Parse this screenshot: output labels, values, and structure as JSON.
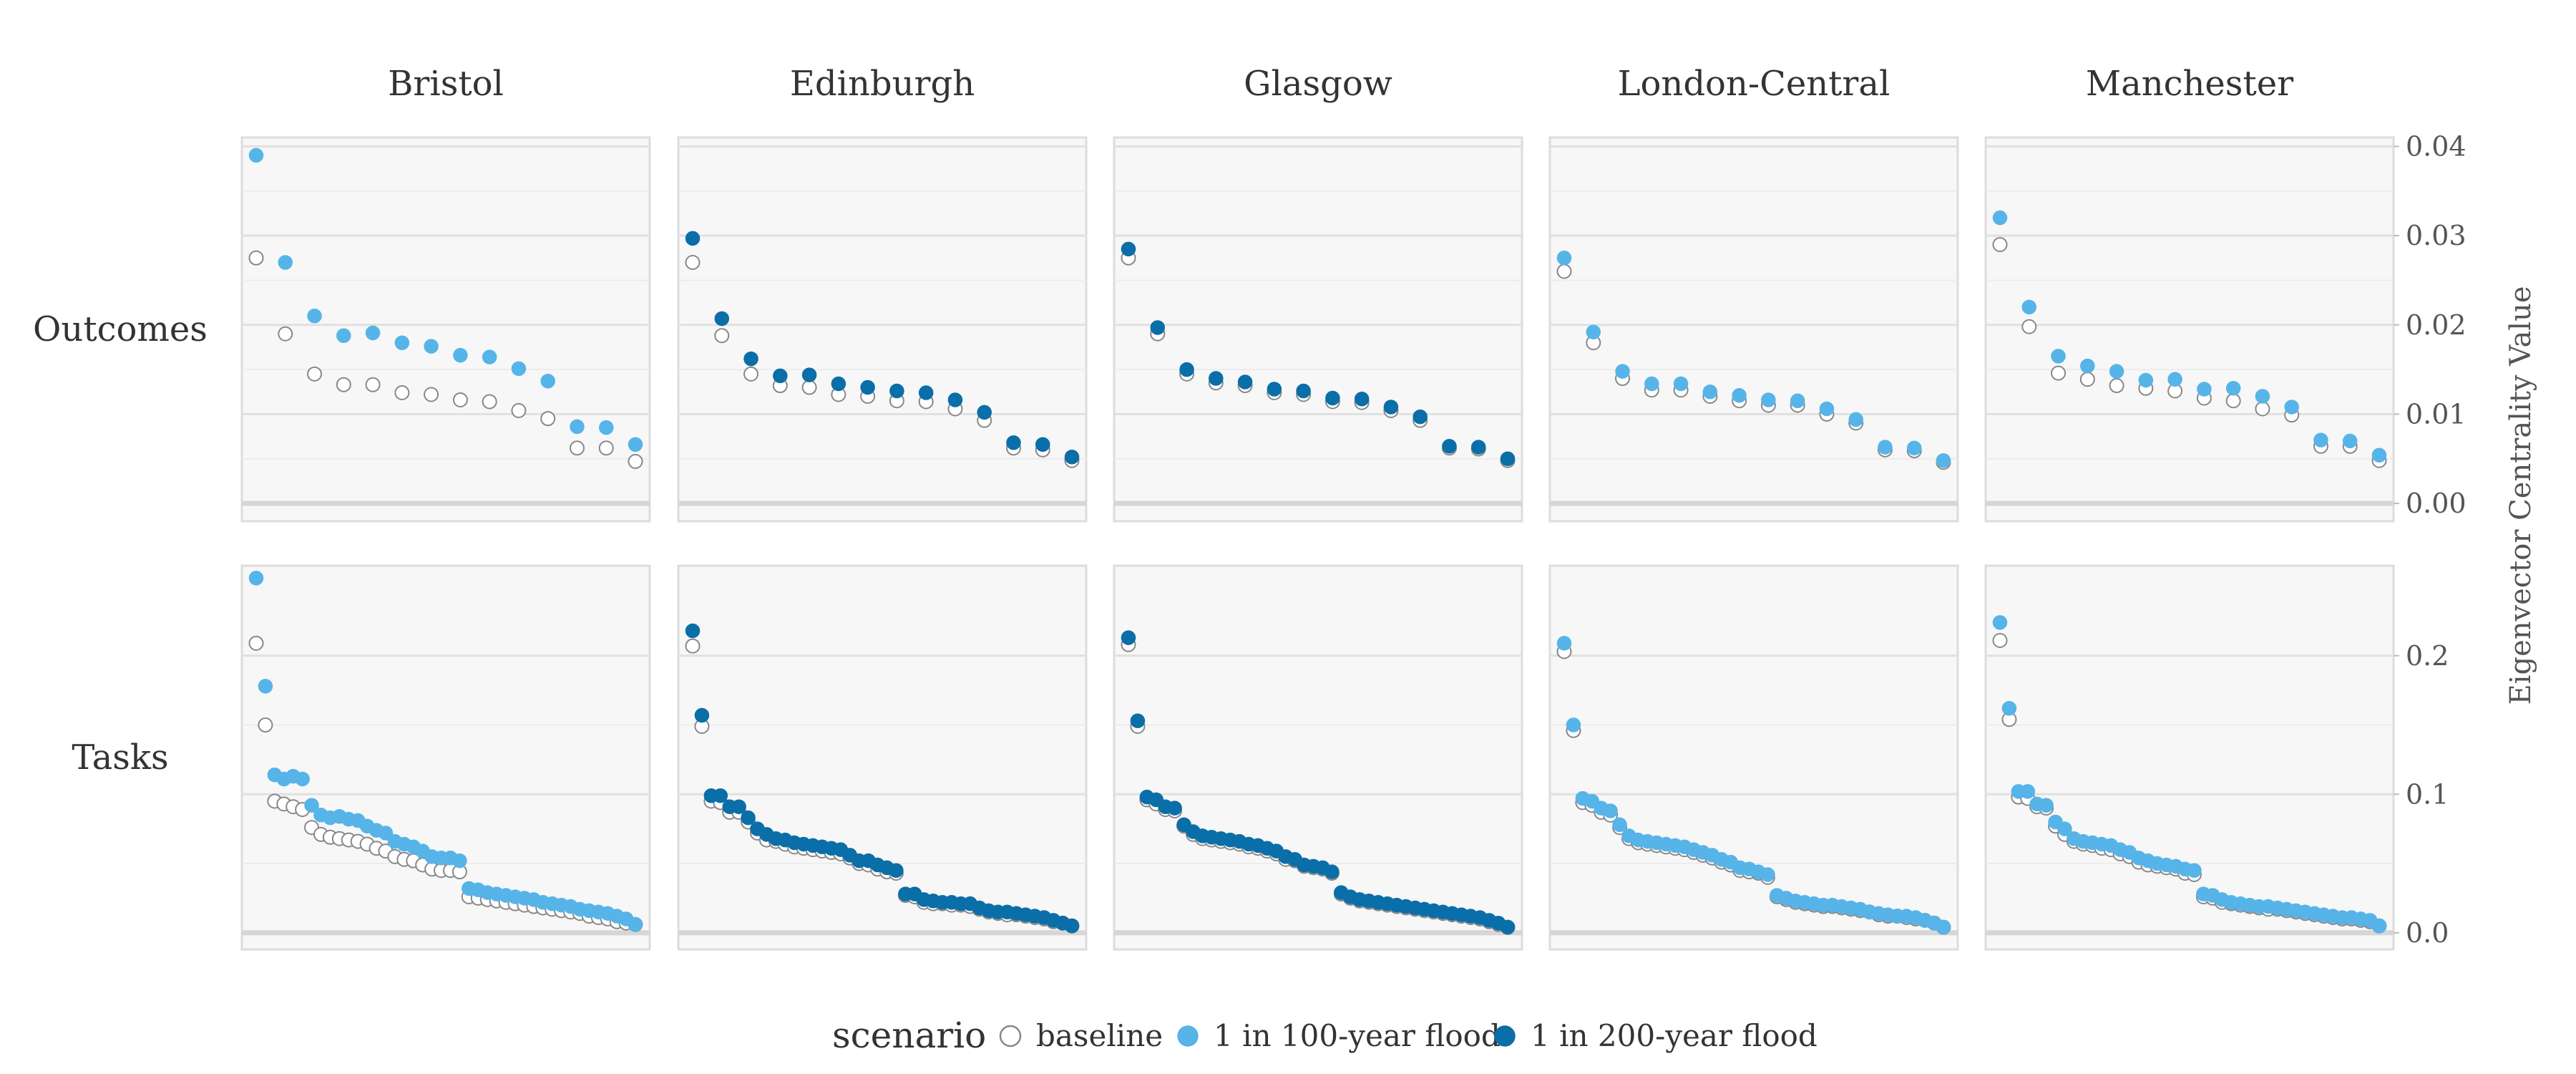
{
  "chart_data": {
    "type": "scatter",
    "legend": {
      "title": "scenario",
      "placement": "bottom",
      "entries": [
        {
          "name": "baseline",
          "color": "#ffffff",
          "stroke": "#888888"
        },
        {
          "name": "1 in 100-year flood",
          "color": "#56b4e9",
          "stroke": "#56b4e9"
        },
        {
          "name": "1 in 200-year flood",
          "color": "#0a6ea8",
          "stroke": "#0a6ea8"
        }
      ]
    },
    "columns": [
      "Bristol",
      "Edinburgh",
      "Glasgow",
      "London-Central",
      "Manchester"
    ],
    "rows": [
      "Outcomes",
      "Tasks"
    ],
    "ylabel": "Eigenvector Centrality Value",
    "grid": true,
    "panel_background": "#f7f7f7",
    "row_axes": [
      {
        "row": "Outcomes",
        "ylim": [
          -0.002,
          0.041
        ],
        "ticks": [
          0.0,
          0.01,
          0.02,
          0.03,
          0.04
        ],
        "tick_labels": [
          "0.00",
          "0.01",
          "0.02",
          "0.03",
          "0.04"
        ]
      },
      {
        "row": "Tasks",
        "ylim": [
          -0.012,
          0.265
        ],
        "ticks": [
          0.0,
          0.1,
          0.2
        ],
        "tick_labels": [
          "0.0",
          "0.1",
          "0.2"
        ]
      }
    ],
    "panels": [
      {
        "row": "Outcomes",
        "column": "Bristol",
        "series": [
          {
            "name": "baseline",
            "values": [
              0.0275,
              0.019,
              0.0145,
              0.0133,
              0.0133,
              0.0124,
              0.0122,
              0.0116,
              0.0114,
              0.0104,
              0.0095,
              0.0062,
              0.0062,
              0.0047
            ]
          },
          {
            "name": "1 in 100-year flood",
            "values": [
              0.039,
              0.027,
              0.021,
              0.0188,
              0.0191,
              0.018,
              0.0176,
              0.0166,
              0.0164,
              0.0151,
              0.0137,
              0.0086,
              0.0085,
              0.0066
            ]
          }
        ]
      },
      {
        "row": "Outcomes",
        "column": "Edinburgh",
        "series": [
          {
            "name": "baseline",
            "values": [
              0.027,
              0.0188,
              0.0145,
              0.0132,
              0.013,
              0.0122,
              0.012,
              0.0115,
              0.0114,
              0.0106,
              0.0093,
              0.0062,
              0.006,
              0.0048
            ]
          },
          {
            "name": "1 in 200-year flood",
            "values": [
              0.0297,
              0.0207,
              0.0162,
              0.0143,
              0.0144,
              0.0134,
              0.013,
              0.0126,
              0.0124,
              0.0116,
              0.0102,
              0.0068,
              0.0066,
              0.0052
            ]
          }
        ]
      },
      {
        "row": "Outcomes",
        "column": "Glasgow",
        "series": [
          {
            "name": "baseline",
            "values": [
              0.0275,
              0.019,
              0.0145,
              0.0135,
              0.0132,
              0.0124,
              0.0122,
              0.0114,
              0.0113,
              0.0104,
              0.0093,
              0.0062,
              0.0061,
              0.0048
            ]
          },
          {
            "name": "1 in 200-year flood",
            "values": [
              0.0285,
              0.0197,
              0.015,
              0.014,
              0.0136,
              0.0128,
              0.0126,
              0.0118,
              0.0117,
              0.0108,
              0.0097,
              0.0064,
              0.0063,
              0.005
            ]
          }
        ]
      },
      {
        "row": "Outcomes",
        "column": "London-Central",
        "series": [
          {
            "name": "baseline",
            "values": [
              0.026,
              0.018,
              0.014,
              0.0127,
              0.0127,
              0.012,
              0.0115,
              0.011,
              0.011,
              0.01,
              0.009,
              0.006,
              0.0059,
              0.0046
            ]
          },
          {
            "name": "1 in 100-year flood",
            "values": [
              0.0275,
              0.0192,
              0.0148,
              0.0134,
              0.0134,
              0.0125,
              0.0121,
              0.0116,
              0.0115,
              0.0106,
              0.0094,
              0.0063,
              0.0062,
              0.0048
            ]
          }
        ]
      },
      {
        "row": "Outcomes",
        "column": "Manchester",
        "series": [
          {
            "name": "baseline",
            "values": [
              0.029,
              0.0198,
              0.0146,
              0.0139,
              0.0132,
              0.0129,
              0.0126,
              0.0118,
              0.0115,
              0.0106,
              0.0099,
              0.0064,
              0.0064,
              0.0048
            ]
          },
          {
            "name": "1 in 100-year flood",
            "values": [
              0.032,
              0.022,
              0.0165,
              0.0154,
              0.0148,
              0.0138,
              0.0139,
              0.0128,
              0.0129,
              0.012,
              0.0108,
              0.0071,
              0.007,
              0.0054
            ]
          }
        ]
      },
      {
        "row": "Tasks",
        "column": "Bristol",
        "series": [
          {
            "name": "baseline",
            "values": [
              0.209,
              0.15,
              0.095,
              0.093,
              0.091,
              0.089,
              0.076,
              0.071,
              0.069,
              0.068,
              0.067,
              0.066,
              0.064,
              0.061,
              0.059,
              0.055,
              0.053,
              0.052,
              0.049,
              0.046,
              0.045,
              0.045,
              0.044,
              0.026,
              0.025,
              0.024,
              0.023,
              0.022,
              0.021,
              0.02,
              0.019,
              0.018,
              0.017,
              0.016,
              0.015,
              0.014,
              0.012,
              0.011,
              0.01,
              0.008,
              0.007,
              0.006
            ]
          },
          {
            "name": "1 in 100-year flood",
            "values": [
              0.256,
              0.178,
              0.114,
              0.111,
              0.113,
              0.111,
              0.092,
              0.085,
              0.083,
              0.084,
              0.082,
              0.081,
              0.077,
              0.074,
              0.072,
              0.066,
              0.064,
              0.062,
              0.059,
              0.055,
              0.054,
              0.054,
              0.052,
              0.032,
              0.031,
              0.029,
              0.028,
              0.027,
              0.026,
              0.025,
              0.024,
              0.022,
              0.021,
              0.02,
              0.019,
              0.017,
              0.016,
              0.015,
              0.014,
              0.012,
              0.01,
              0.006
            ]
          }
        ]
      },
      {
        "row": "Tasks",
        "column": "Edinburgh",
        "series": [
          {
            "name": "baseline",
            "values": [
              0.207,
              0.149,
              0.095,
              0.094,
              0.087,
              0.087,
              0.08,
              0.072,
              0.067,
              0.066,
              0.064,
              0.062,
              0.061,
              0.06,
              0.059,
              0.058,
              0.057,
              0.054,
              0.05,
              0.049,
              0.046,
              0.044,
              0.043,
              0.027,
              0.026,
              0.022,
              0.021,
              0.021,
              0.02,
              0.02,
              0.019,
              0.017,
              0.015,
              0.014,
              0.013,
              0.013,
              0.012,
              0.011,
              0.01,
              0.008,
              0.007,
              0.005
            ]
          },
          {
            "name": "1 in 200-year flood",
            "values": [
              0.218,
              0.157,
              0.099,
              0.099,
              0.091,
              0.091,
              0.083,
              0.075,
              0.071,
              0.068,
              0.067,
              0.065,
              0.064,
              0.063,
              0.062,
              0.061,
              0.06,
              0.056,
              0.052,
              0.052,
              0.049,
              0.047,
              0.045,
              0.028,
              0.028,
              0.024,
              0.023,
              0.022,
              0.022,
              0.021,
              0.021,
              0.018,
              0.016,
              0.015,
              0.015,
              0.014,
              0.013,
              0.012,
              0.011,
              0.009,
              0.007,
              0.005
            ]
          }
        ]
      },
      {
        "row": "Tasks",
        "column": "Glasgow",
        "series": [
          {
            "name": "baseline",
            "values": [
              0.208,
              0.149,
              0.096,
              0.093,
              0.089,
              0.088,
              0.077,
              0.071,
              0.068,
              0.067,
              0.066,
              0.065,
              0.064,
              0.062,
              0.061,
              0.059,
              0.057,
              0.053,
              0.052,
              0.048,
              0.047,
              0.046,
              0.043,
              0.028,
              0.025,
              0.023,
              0.022,
              0.021,
              0.02,
              0.019,
              0.018,
              0.017,
              0.016,
              0.015,
              0.014,
              0.013,
              0.012,
              0.011,
              0.01,
              0.008,
              0.006,
              0.004
            ]
          },
          {
            "name": "1 in 200-year flood",
            "values": [
              0.213,
              0.153,
              0.098,
              0.096,
              0.091,
              0.09,
              0.078,
              0.073,
              0.07,
              0.069,
              0.068,
              0.067,
              0.066,
              0.064,
              0.063,
              0.061,
              0.059,
              0.055,
              0.053,
              0.049,
              0.048,
              0.047,
              0.044,
              0.029,
              0.026,
              0.024,
              0.023,
              0.022,
              0.021,
              0.02,
              0.019,
              0.018,
              0.017,
              0.016,
              0.015,
              0.014,
              0.013,
              0.012,
              0.011,
              0.009,
              0.007,
              0.004
            ]
          }
        ]
      },
      {
        "row": "Tasks",
        "column": "London-Central",
        "series": [
          {
            "name": "baseline",
            "values": [
              0.203,
              0.146,
              0.094,
              0.092,
              0.087,
              0.085,
              0.076,
              0.068,
              0.065,
              0.064,
              0.063,
              0.062,
              0.061,
              0.06,
              0.058,
              0.056,
              0.054,
              0.051,
              0.049,
              0.045,
              0.044,
              0.043,
              0.04,
              0.026,
              0.024,
              0.022,
              0.021,
              0.02,
              0.019,
              0.019,
              0.018,
              0.017,
              0.016,
              0.015,
              0.013,
              0.012,
              0.012,
              0.011,
              0.01,
              0.009,
              0.007,
              0.004
            ]
          },
          {
            "name": "1 in 100-year flood",
            "values": [
              0.209,
              0.15,
              0.097,
              0.095,
              0.09,
              0.088,
              0.078,
              0.07,
              0.067,
              0.066,
              0.065,
              0.064,
              0.063,
              0.062,
              0.06,
              0.058,
              0.056,
              0.053,
              0.051,
              0.047,
              0.046,
              0.044,
              0.042,
              0.027,
              0.025,
              0.023,
              0.022,
              0.021,
              0.02,
              0.02,
              0.019,
              0.018,
              0.017,
              0.015,
              0.014,
              0.013,
              0.012,
              0.012,
              0.011,
              0.009,
              0.007,
              0.004
            ]
          }
        ]
      },
      {
        "row": "Tasks",
        "column": "Manchester",
        "series": [
          {
            "name": "baseline",
            "values": [
              0.211,
              0.154,
              0.098,
              0.097,
              0.091,
              0.09,
              0.077,
              0.071,
              0.066,
              0.064,
              0.063,
              0.061,
              0.06,
              0.057,
              0.055,
              0.051,
              0.049,
              0.048,
              0.047,
              0.046,
              0.043,
              0.042,
              0.026,
              0.025,
              0.022,
              0.021,
              0.02,
              0.019,
              0.018,
              0.017,
              0.017,
              0.016,
              0.015,
              0.014,
              0.013,
              0.012,
              0.011,
              0.01,
              0.01,
              0.009,
              0.008,
              0.005
            ]
          },
          {
            "name": "1 in 100-year flood",
            "values": [
              0.224,
              0.162,
              0.102,
              0.102,
              0.093,
              0.092,
              0.08,
              0.075,
              0.068,
              0.066,
              0.065,
              0.064,
              0.063,
              0.06,
              0.058,
              0.054,
              0.052,
              0.05,
              0.049,
              0.048,
              0.046,
              0.045,
              0.028,
              0.027,
              0.024,
              0.022,
              0.021,
              0.02,
              0.019,
              0.019,
              0.018,
              0.017,
              0.016,
              0.015,
              0.014,
              0.013,
              0.012,
              0.011,
              0.011,
              0.01,
              0.009,
              0.005
            ]
          }
        ]
      }
    ]
  }
}
